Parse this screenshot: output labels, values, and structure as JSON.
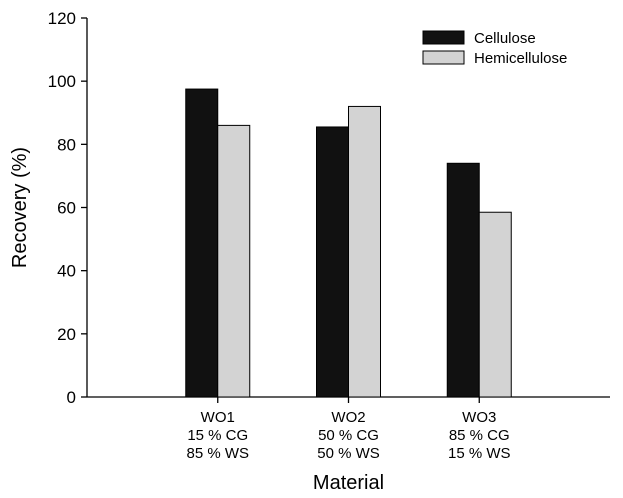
{
  "chart_data": {
    "type": "bar",
    "title": "",
    "xlabel": "Material",
    "ylabel": "Recovery (%)",
    "ylim": [
      0,
      120
    ],
    "yticks": [
      0,
      20,
      40,
      60,
      80,
      100,
      120
    ],
    "grid": false,
    "legend_position": "top-right",
    "categories": [
      {
        "lines": [
          "WO1",
          "15 % CG",
          "85 % WS"
        ]
      },
      {
        "lines": [
          "WO2",
          "50 % CG",
          "50 % WS"
        ]
      },
      {
        "lines": [
          "WO3",
          "85 % CG",
          "15 % WS"
        ]
      }
    ],
    "series": [
      {
        "name": "Cellulose",
        "color": "#111111",
        "values": [
          97.5,
          85.5,
          74
        ]
      },
      {
        "name": "Hemicellulose",
        "color": "#d3d3d3",
        "values": [
          86,
          92,
          58.5
        ]
      }
    ]
  }
}
